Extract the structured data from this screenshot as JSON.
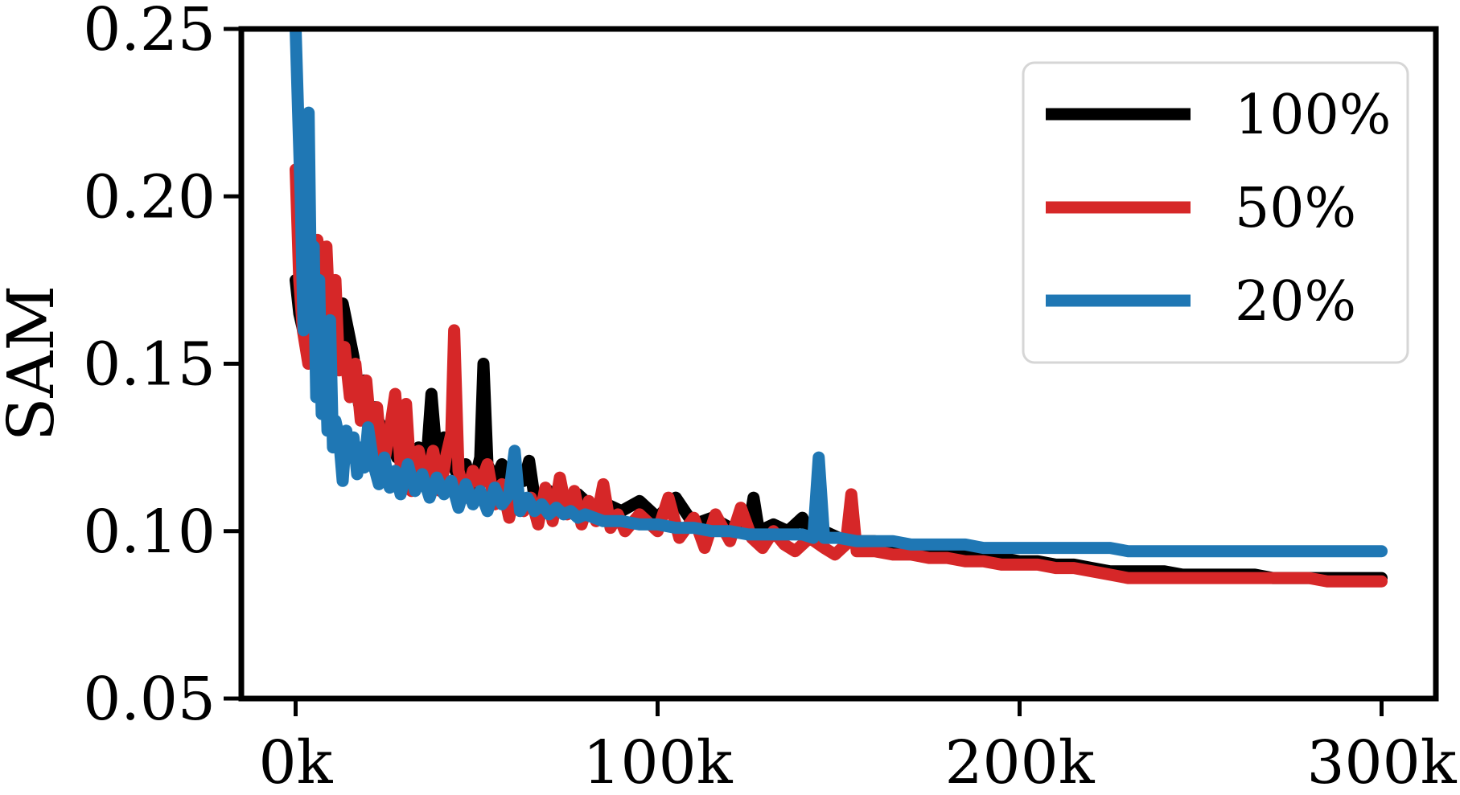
{
  "chart_data": {
    "type": "line",
    "title": "",
    "xlabel": "",
    "ylabel": "SAM",
    "xlim": [
      -15000,
      315000
    ],
    "ylim": [
      0.05,
      0.25
    ],
    "x_ticks": [
      0,
      100000,
      200000,
      300000
    ],
    "x_tick_labels": [
      "0k",
      "100k",
      "200k",
      "300k"
    ],
    "y_ticks": [
      0.05,
      0.1,
      0.15,
      0.2,
      0.25
    ],
    "y_tick_labels": [
      "0.05",
      "0.10",
      "0.15",
      "0.20",
      "0.25"
    ],
    "grid": false,
    "legend_position": "top-right",
    "series": [
      {
        "name": "100%",
        "color": "#000000",
        "points": [
          [
            0,
            0.175
          ],
          [
            1000,
            0.165
          ],
          [
            2500,
            0.158
          ],
          [
            4000,
            0.162
          ],
          [
            5500,
            0.158
          ],
          [
            7000,
            0.16
          ],
          [
            8500,
            0.155
          ],
          [
            10000,
            0.162
          ],
          [
            11500,
            0.15
          ],
          [
            13000,
            0.168
          ],
          [
            14500,
            0.16
          ],
          [
            16000,
            0.152
          ],
          [
            17500,
            0.138
          ],
          [
            19000,
            0.145
          ],
          [
            20500,
            0.13
          ],
          [
            22000,
            0.137
          ],
          [
            24000,
            0.128
          ],
          [
            26000,
            0.132
          ],
          [
            28000,
            0.122
          ],
          [
            30000,
            0.126
          ],
          [
            32000,
            0.12
          ],
          [
            34000,
            0.125
          ],
          [
            36000,
            0.118
          ],
          [
            37500,
            0.141
          ],
          [
            39000,
            0.122
          ],
          [
            41000,
            0.128
          ],
          [
            43000,
            0.121
          ],
          [
            45000,
            0.116
          ],
          [
            47000,
            0.12
          ],
          [
            49000,
            0.113
          ],
          [
            51000,
            0.122
          ],
          [
            51900,
            0.15
          ],
          [
            53000,
            0.12
          ],
          [
            55000,
            0.115
          ],
          [
            57000,
            0.12
          ],
          [
            59000,
            0.112
          ],
          [
            61000,
            0.119
          ],
          [
            63000,
            0.115
          ],
          [
            64500,
            0.121
          ],
          [
            66000,
            0.11
          ],
          [
            70000,
            0.112
          ],
          [
            74000,
            0.108
          ],
          [
            78000,
            0.111
          ],
          [
            82000,
            0.107
          ],
          [
            86000,
            0.108
          ],
          [
            90000,
            0.106
          ],
          [
            95000,
            0.109
          ],
          [
            100000,
            0.104
          ],
          [
            105000,
            0.11
          ],
          [
            110000,
            0.102
          ],
          [
            115000,
            0.104
          ],
          [
            120000,
            0.101
          ],
          [
            125000,
            0.1
          ],
          [
            126500,
            0.11
          ],
          [
            128000,
            0.1
          ],
          [
            132000,
            0.102
          ],
          [
            136000,
            0.1
          ],
          [
            140000,
            0.104
          ],
          [
            142000,
            0.099
          ],
          [
            146000,
            0.1
          ],
          [
            150000,
            0.098
          ],
          [
            155000,
            0.097
          ],
          [
            160000,
            0.097
          ],
          [
            165000,
            0.096
          ],
          [
            170000,
            0.095
          ],
          [
            175000,
            0.094
          ],
          [
            180000,
            0.093
          ],
          [
            185000,
            0.093
          ],
          [
            190000,
            0.092
          ],
          [
            195000,
            0.092
          ],
          [
            200000,
            0.091
          ],
          [
            205000,
            0.091
          ],
          [
            210000,
            0.09
          ],
          [
            215000,
            0.09
          ],
          [
            220000,
            0.089
          ],
          [
            225000,
            0.088
          ],
          [
            230000,
            0.088
          ],
          [
            235000,
            0.088
          ],
          [
            240000,
            0.088
          ],
          [
            245000,
            0.087
          ],
          [
            250000,
            0.087
          ],
          [
            255000,
            0.087
          ],
          [
            260000,
            0.087
          ],
          [
            265000,
            0.087
          ],
          [
            270000,
            0.086
          ],
          [
            275000,
            0.086
          ],
          [
            280000,
            0.086
          ],
          [
            285000,
            0.086
          ],
          [
            290000,
            0.086
          ],
          [
            295000,
            0.086
          ],
          [
            300000,
            0.086
          ]
        ]
      },
      {
        "name": "50%",
        "color": "#d62728",
        "points": [
          [
            0,
            0.208
          ],
          [
            1000,
            0.175
          ],
          [
            2000,
            0.16
          ],
          [
            3500,
            0.15
          ],
          [
            5000,
            0.17
          ],
          [
            6000,
            0.187
          ],
          [
            7500,
            0.176
          ],
          [
            8500,
            0.185
          ],
          [
            9500,
            0.16
          ],
          [
            11000,
            0.175
          ],
          [
            12000,
            0.148
          ],
          [
            13500,
            0.155
          ],
          [
            15000,
            0.14
          ],
          [
            16500,
            0.15
          ],
          [
            18000,
            0.133
          ],
          [
            19500,
            0.145
          ],
          [
            21000,
            0.127
          ],
          [
            22500,
            0.137
          ],
          [
            24000,
            0.118
          ],
          [
            26000,
            0.13
          ],
          [
            27500,
            0.141
          ],
          [
            29000,
            0.12
          ],
          [
            30500,
            0.138
          ],
          [
            32000,
            0.112
          ],
          [
            34000,
            0.124
          ],
          [
            36000,
            0.114
          ],
          [
            38000,
            0.124
          ],
          [
            40000,
            0.112
          ],
          [
            41500,
            0.122
          ],
          [
            43000,
            0.129
          ],
          [
            43800,
            0.16
          ],
          [
            45000,
            0.118
          ],
          [
            47000,
            0.11
          ],
          [
            49000,
            0.118
          ],
          [
            51000,
            0.114
          ],
          [
            53000,
            0.12
          ],
          [
            55000,
            0.108
          ],
          [
            57000,
            0.114
          ],
          [
            59000,
            0.104
          ],
          [
            61000,
            0.113
          ],
          [
            63000,
            0.106
          ],
          [
            65000,
            0.11
          ],
          [
            67000,
            0.102
          ],
          [
            69000,
            0.113
          ],
          [
            71000,
            0.103
          ],
          [
            73000,
            0.116
          ],
          [
            75000,
            0.105
          ],
          [
            77000,
            0.112
          ],
          [
            79000,
            0.102
          ],
          [
            81000,
            0.109
          ],
          [
            83000,
            0.103
          ],
          [
            85000,
            0.114
          ],
          [
            87000,
            0.101
          ],
          [
            89000,
            0.105
          ],
          [
            91000,
            0.1
          ],
          [
            95000,
            0.105
          ],
          [
            100000,
            0.1
          ],
          [
            103000,
            0.11
          ],
          [
            106000,
            0.098
          ],
          [
            110000,
            0.104
          ],
          [
            113000,
            0.095
          ],
          [
            116000,
            0.105
          ],
          [
            120000,
            0.097
          ],
          [
            123000,
            0.107
          ],
          [
            126000,
            0.098
          ],
          [
            129000,
            0.095
          ],
          [
            132000,
            0.1
          ],
          [
            135000,
            0.096
          ],
          [
            138000,
            0.094
          ],
          [
            142000,
            0.098
          ],
          [
            146000,
            0.095
          ],
          [
            149000,
            0.093
          ],
          [
            152000,
            0.096
          ],
          [
            153500,
            0.111
          ],
          [
            155000,
            0.094
          ],
          [
            160000,
            0.094
          ],
          [
            165000,
            0.093
          ],
          [
            170000,
            0.093
          ],
          [
            175000,
            0.092
          ],
          [
            180000,
            0.092
          ],
          [
            185000,
            0.091
          ],
          [
            190000,
            0.091
          ],
          [
            195000,
            0.09
          ],
          [
            200000,
            0.09
          ],
          [
            205000,
            0.09
          ],
          [
            210000,
            0.089
          ],
          [
            215000,
            0.089
          ],
          [
            220000,
            0.088
          ],
          [
            225000,
            0.087
          ],
          [
            230000,
            0.086
          ],
          [
            235000,
            0.086
          ],
          [
            240000,
            0.086
          ],
          [
            245000,
            0.086
          ],
          [
            250000,
            0.086
          ],
          [
            255000,
            0.086
          ],
          [
            260000,
            0.086
          ],
          [
            265000,
            0.086
          ],
          [
            270000,
            0.086
          ],
          [
            275000,
            0.086
          ],
          [
            280000,
            0.086
          ],
          [
            285000,
            0.085
          ],
          [
            290000,
            0.085
          ],
          [
            295000,
            0.085
          ],
          [
            300000,
            0.085
          ]
        ]
      },
      {
        "name": "20%",
        "color": "#1f77b4",
        "points": [
          [
            0,
            0.25
          ],
          [
            700,
            0.225
          ],
          [
            1400,
            0.2
          ],
          [
            2200,
            0.16
          ],
          [
            2900,
            0.19
          ],
          [
            3600,
            0.225
          ],
          [
            4300,
            0.165
          ],
          [
            5000,
            0.185
          ],
          [
            5700,
            0.14
          ],
          [
            6500,
            0.175
          ],
          [
            7200,
            0.135
          ],
          [
            8000,
            0.16
          ],
          [
            8800,
            0.13
          ],
          [
            9500,
            0.163
          ],
          [
            10300,
            0.125
          ],
          [
            11000,
            0.133
          ],
          [
            12000,
            0.128
          ],
          [
            13000,
            0.115
          ],
          [
            14000,
            0.13
          ],
          [
            15000,
            0.122
          ],
          [
            16000,
            0.128
          ],
          [
            17000,
            0.117
          ],
          [
            18000,
            0.125
          ],
          [
            19000,
            0.119
          ],
          [
            20000,
            0.131
          ],
          [
            21500,
            0.12
          ],
          [
            23000,
            0.114
          ],
          [
            24500,
            0.122
          ],
          [
            26000,
            0.113
          ],
          [
            27500,
            0.118
          ],
          [
            29000,
            0.111
          ],
          [
            31000,
            0.12
          ],
          [
            33000,
            0.112
          ],
          [
            35000,
            0.117
          ],
          [
            37000,
            0.11
          ],
          [
            39000,
            0.116
          ],
          [
            41000,
            0.111
          ],
          [
            43000,
            0.115
          ],
          [
            45000,
            0.107
          ],
          [
            47000,
            0.114
          ],
          [
            49000,
            0.108
          ],
          [
            51000,
            0.112
          ],
          [
            53000,
            0.106
          ],
          [
            55000,
            0.113
          ],
          [
            57000,
            0.108
          ],
          [
            59000,
            0.111
          ],
          [
            60500,
            0.124
          ],
          [
            62000,
            0.106
          ],
          [
            64000,
            0.11
          ],
          [
            66000,
            0.106
          ],
          [
            68000,
            0.108
          ],
          [
            70000,
            0.105
          ],
          [
            72000,
            0.107
          ],
          [
            74000,
            0.105
          ],
          [
            76000,
            0.106
          ],
          [
            78000,
            0.104
          ],
          [
            80000,
            0.105
          ],
          [
            85000,
            0.103
          ],
          [
            90000,
            0.103
          ],
          [
            95000,
            0.102
          ],
          [
            100000,
            0.102
          ],
          [
            105000,
            0.101
          ],
          [
            110000,
            0.101
          ],
          [
            115000,
            0.1
          ],
          [
            120000,
            0.1
          ],
          [
            125000,
            0.099
          ],
          [
            130000,
            0.099
          ],
          [
            135000,
            0.099
          ],
          [
            140000,
            0.099
          ],
          [
            143000,
            0.098
          ],
          [
            144500,
            0.122
          ],
          [
            146000,
            0.098
          ],
          [
            150000,
            0.098
          ],
          [
            155000,
            0.097
          ],
          [
            160000,
            0.097
          ],
          [
            165000,
            0.097
          ],
          [
            170000,
            0.096
          ],
          [
            175000,
            0.096
          ],
          [
            180000,
            0.096
          ],
          [
            185000,
            0.096
          ],
          [
            190000,
            0.095
          ],
          [
            195000,
            0.095
          ],
          [
            200000,
            0.095
          ],
          [
            205000,
            0.095
          ],
          [
            210000,
            0.095
          ],
          [
            215000,
            0.095
          ],
          [
            220000,
            0.095
          ],
          [
            225000,
            0.095
          ],
          [
            230000,
            0.094
          ],
          [
            235000,
            0.094
          ],
          [
            240000,
            0.094
          ],
          [
            245000,
            0.094
          ],
          [
            250000,
            0.094
          ],
          [
            255000,
            0.094
          ],
          [
            260000,
            0.094
          ],
          [
            265000,
            0.094
          ],
          [
            270000,
            0.094
          ],
          [
            275000,
            0.094
          ],
          [
            280000,
            0.094
          ],
          [
            285000,
            0.094
          ],
          [
            290000,
            0.094
          ],
          [
            295000,
            0.094
          ],
          [
            300000,
            0.094
          ]
        ]
      }
    ]
  }
}
